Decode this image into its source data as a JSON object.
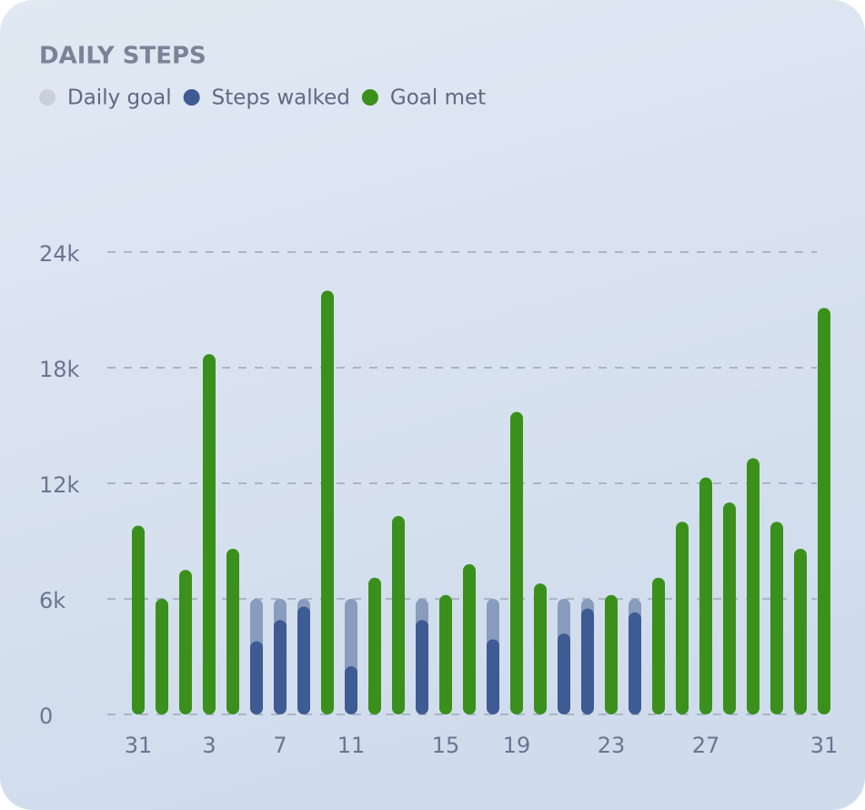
{
  "chart_data": {
    "type": "bar",
    "title": "DAILY STEPS",
    "categories": [
      "31",
      null,
      null,
      "3",
      null,
      null,
      "7",
      null,
      null,
      "11",
      null,
      null,
      null,
      "15",
      null,
      null,
      "19",
      null,
      null,
      null,
      "23",
      null,
      null,
      null,
      "27",
      null,
      null,
      null,
      null,
      "31"
    ],
    "series": [
      {
        "name": "Daily goal",
        "color": "#8a9cbd",
        "values": [
          6000,
          6000,
          6000,
          6000,
          6000,
          6000,
          6000,
          6000,
          6000,
          6000,
          6000,
          6000,
          6000,
          6000,
          6000,
          6000,
          6000,
          6000,
          6000,
          6000,
          6000,
          6000,
          6000,
          6000,
          6000,
          6000,
          6000,
          6000,
          6000,
          6000
        ]
      },
      {
        "name": "Steps walked",
        "color": "#3f5b94",
        "values": [
          9800,
          6000,
          7500,
          18700,
          8600,
          3800,
          4900,
          5600,
          22000,
          2500,
          7100,
          10300,
          4900,
          6200,
          7800,
          3900,
          15700,
          6800,
          4200,
          5500,
          6200,
          5300,
          7100,
          10000,
          12300,
          11000,
          13300,
          10000,
          8600,
          21100
        ]
      }
    ],
    "goal_met": {
      "name": "Goal met",
      "color": "#3b901c"
    },
    "ylim": [
      0,
      24000
    ],
    "yticks": [
      0,
      {
        "value": 6000,
        "label": "6k"
      },
      {
        "value": 12000,
        "label": "12k"
      },
      {
        "value": 18000,
        "label": "18k"
      },
      {
        "value": 24000,
        "label": "24k"
      }
    ],
    "grid": true
  }
}
